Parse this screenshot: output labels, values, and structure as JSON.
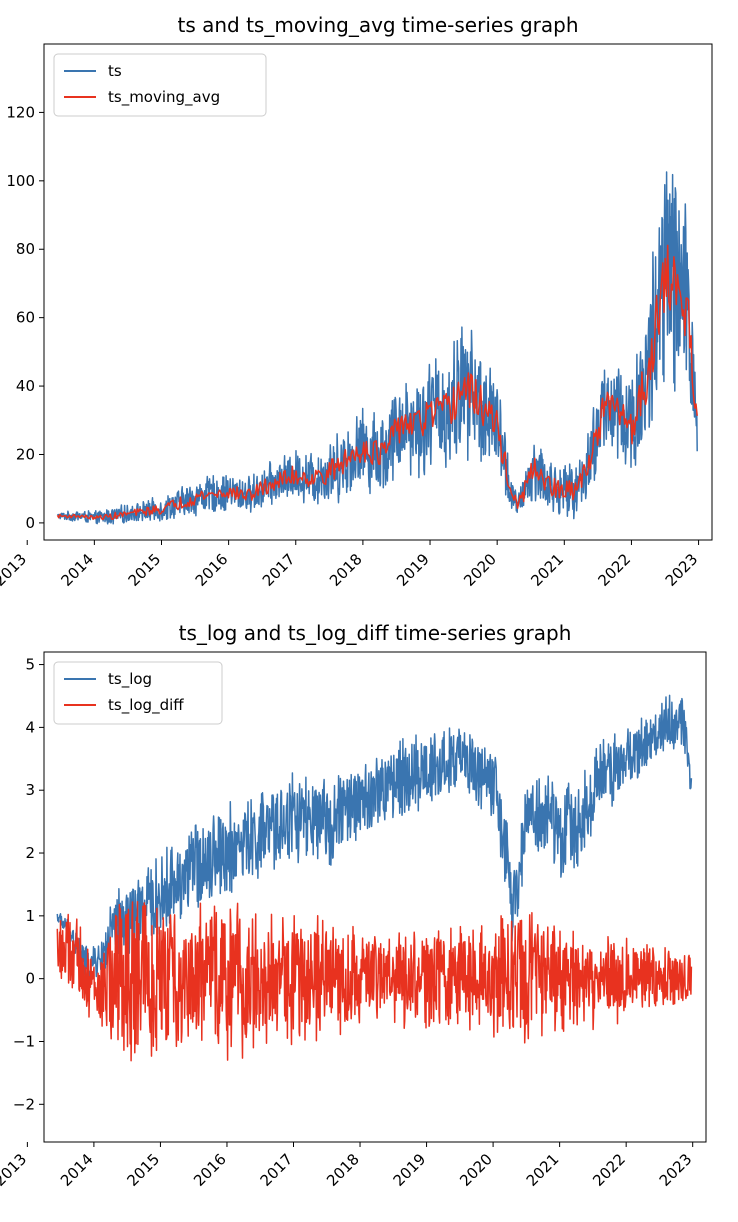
{
  "chart_data": [
    {
      "type": "line",
      "title": "ts and ts_moving_avg time-series graph",
      "xlabel": "",
      "ylabel": "",
      "xlim": [
        2013.25,
        2023.2
      ],
      "ylim": [
        -5,
        140
      ],
      "x_ticks": [
        "2013",
        "2014",
        "2015",
        "2016",
        "2017",
        "2018",
        "2019",
        "2020",
        "2021",
        "2022",
        "2023"
      ],
      "y_ticks": [
        "0",
        "20",
        "40",
        "60",
        "80",
        "100",
        "120"
      ],
      "legend": "top-left",
      "grid": false,
      "series": [
        {
          "name": "ts",
          "color": "#3a75b0",
          "style": "noisy",
          "x": [
            2013.45,
            2013.8,
            2014.0,
            2014.3,
            2014.6,
            2015.0,
            2015.3,
            2015.6,
            2016.0,
            2016.3,
            2016.6,
            2017.0,
            2017.3,
            2017.6,
            2018.0,
            2018.3,
            2018.6,
            2018.8,
            2019.0,
            2019.3,
            2019.5,
            2019.75,
            2020.0,
            2020.2,
            2020.3,
            2020.45,
            2020.6,
            2020.75,
            2021.0,
            2021.2,
            2021.4,
            2021.6,
            2021.85,
            2022.0,
            2022.2,
            2022.4,
            2022.55,
            2022.7,
            2022.85,
            2022.98
          ],
          "mid": [
            2,
            2,
            1.5,
            2,
            3,
            4,
            6,
            8,
            9,
            8,
            11,
            14,
            13,
            16,
            22,
            20,
            30,
            28,
            32,
            33,
            40,
            35,
            28,
            10,
            4,
            12,
            16,
            11,
            9,
            10,
            20,
            34,
            32,
            28,
            40,
            62,
            72,
            68,
            60,
            30
          ],
          "amp": [
            1,
            2,
            2,
            3,
            3,
            4,
            5,
            6,
            6,
            6,
            7,
            8,
            9,
            11,
            13,
            14,
            15,
            17,
            18,
            20,
            22,
            20,
            16,
            8,
            3,
            9,
            12,
            9,
            8,
            9,
            13,
            16,
            18,
            19,
            25,
            35,
            45,
            40,
            30,
            14
          ]
        },
        {
          "name": "ts_moving_avg",
          "color": "#e8321f",
          "style": "smooth",
          "x": [
            2013.45,
            2013.8,
            2014.0,
            2014.3,
            2014.6,
            2015.0,
            2015.3,
            2015.6,
            2016.0,
            2016.3,
            2016.6,
            2017.0,
            2017.3,
            2017.6,
            2018.0,
            2018.3,
            2018.6,
            2018.8,
            2019.0,
            2019.3,
            2019.5,
            2019.75,
            2020.0,
            2020.2,
            2020.3,
            2020.45,
            2020.6,
            2020.75,
            2021.0,
            2021.2,
            2021.4,
            2021.6,
            2021.85,
            2022.0,
            2022.2,
            2022.4,
            2022.55,
            2022.7,
            2022.85,
            2022.98
          ],
          "mid": [
            2,
            2,
            1.5,
            2,
            3,
            4,
            6,
            8,
            9,
            8,
            11,
            14,
            13,
            16,
            22,
            20,
            30,
            28,
            32,
            33,
            40,
            35,
            28,
            10,
            4,
            12,
            16,
            11,
            9,
            10,
            20,
            34,
            32,
            28,
            40,
            62,
            72,
            68,
            60,
            30
          ],
          "amp": [
            0.5,
            0.5,
            0.5,
            1,
            1,
            1.5,
            2,
            2,
            2,
            2,
            2.5,
            3,
            3,
            3.5,
            4,
            4,
            5,
            5,
            5,
            5,
            6,
            6,
            5,
            3,
            2,
            4,
            4,
            3,
            3,
            3,
            4,
            5,
            5,
            6,
            8,
            10,
            10,
            10,
            8,
            5
          ]
        }
      ]
    },
    {
      "type": "line",
      "title": "ts_log and ts_log_diff time-series graph",
      "xlabel": "",
      "ylabel": "",
      "xlim": [
        2013.25,
        2023.2
      ],
      "ylim": [
        -2.6,
        5.2
      ],
      "x_ticks": [
        "2013",
        "2014",
        "2015",
        "2016",
        "2017",
        "2018",
        "2019",
        "2020",
        "2021",
        "2022",
        "2023"
      ],
      "y_ticks": [
        "5",
        "4",
        "3",
        "2",
        "1",
        "0",
        "−1",
        "−2"
      ],
      "legend": "top-left",
      "grid": false,
      "series": [
        {
          "name": "ts_log",
          "color": "#3a75b0",
          "style": "noisy",
          "x": [
            2013.45,
            2013.7,
            2013.9,
            2014.1,
            2014.3,
            2014.6,
            2015.0,
            2015.4,
            2015.8,
            2016.2,
            2016.6,
            2017.0,
            2017.4,
            2017.8,
            2018.2,
            2018.6,
            2019.0,
            2019.4,
            2019.7,
            2020.0,
            2020.2,
            2020.3,
            2020.5,
            2020.8,
            2021.0,
            2021.3,
            2021.6,
            2022.0,
            2022.3,
            2022.6,
            2022.85,
            2022.98
          ],
          "mid": [
            1.0,
            0.6,
            0.2,
            0.3,
            0.8,
            1.0,
            1.3,
            1.7,
            2.0,
            2.1,
            2.3,
            2.6,
            2.4,
            2.7,
            2.9,
            3.2,
            3.3,
            3.5,
            3.4,
            3.1,
            1.9,
            1.0,
            2.6,
            2.6,
            2.3,
            2.5,
            3.2,
            3.5,
            3.7,
            4.1,
            4.1,
            3.2
          ],
          "amp": [
            0.1,
            0.3,
            0.3,
            0.3,
            0.6,
            0.7,
            0.7,
            0.8,
            0.8,
            0.8,
            0.8,
            0.8,
            0.8,
            0.7,
            0.7,
            0.7,
            0.7,
            0.6,
            0.6,
            0.7,
            0.8,
            0.6,
            0.7,
            0.8,
            0.8,
            0.8,
            0.7,
            0.6,
            0.5,
            0.5,
            0.5,
            0.5
          ]
        },
        {
          "name": "ts_log_diff",
          "color": "#e8321f",
          "style": "noisy",
          "x": [
            2013.45,
            2013.7,
            2013.9,
            2014.1,
            2014.3,
            2014.6,
            2015.0,
            2015.5,
            2016.0,
            2016.5,
            2017.0,
            2017.5,
            2018.0,
            2018.5,
            2019.0,
            2019.5,
            2020.0,
            2020.3,
            2020.6,
            2021.0,
            2021.3,
            2021.6,
            2022.0,
            2022.5,
            2022.98
          ],
          "mid": [
            0.5,
            0.3,
            0.0,
            -0.3,
            0.0,
            0.0,
            0.0,
            0.0,
            0.0,
            0.0,
            0.0,
            0.0,
            0.0,
            0.0,
            0.0,
            0.0,
            0.0,
            0.0,
            0.0,
            0.0,
            0.0,
            0.0,
            0.0,
            0.0,
            0.0
          ],
          "amp": [
            0.6,
            0.8,
            0.7,
            0.6,
            1.3,
            1.5,
            1.4,
            1.3,
            1.4,
            1.2,
            1.1,
            1.0,
            0.9,
            0.9,
            0.9,
            0.9,
            1.0,
            1.3,
            1.1,
            1.0,
            0.9,
            0.8,
            0.7,
            0.6,
            0.5
          ]
        }
      ]
    }
  ]
}
